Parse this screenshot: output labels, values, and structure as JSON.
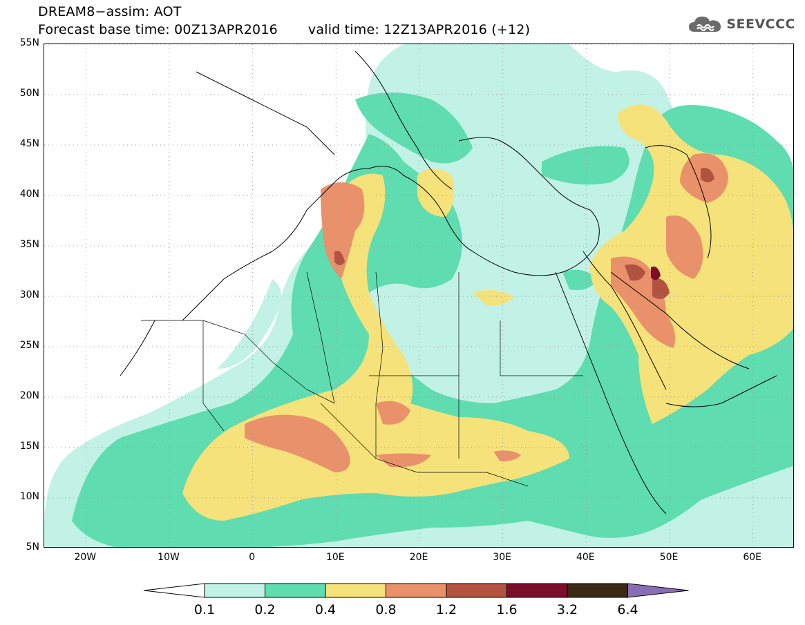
{
  "header": {
    "title": "DREAM8−assim: AOT",
    "base_time": "Forecast base time: 00Z13APR2016",
    "valid_time": "valid time: 12Z13APR2016 (+12)",
    "logo_text": "SEEVCCC",
    "logo_icon": "cloud-icon"
  },
  "map": {
    "lon_range": [
      -25,
      65
    ],
    "lat_range": [
      5,
      55
    ],
    "lat_labels": [
      "5N",
      "10N",
      "15N",
      "20N",
      "25N",
      "30N",
      "35N",
      "40N",
      "45N",
      "50N",
      "55N"
    ],
    "lat_values": [
      5,
      10,
      15,
      20,
      25,
      30,
      35,
      40,
      45,
      50,
      55
    ],
    "lon_labels": [
      "20W",
      "10W",
      "0",
      "10E",
      "20E",
      "30E",
      "40E",
      "50E",
      "60E"
    ],
    "lon_values": [
      -20,
      -10,
      0,
      10,
      20,
      30,
      40,
      50,
      60
    ],
    "gridlines": "dotted"
  },
  "colorbar": {
    "labels": [
      "0.1",
      "0.2",
      "0.4",
      "0.8",
      "1.2",
      "1.6",
      "3.2",
      "6.4"
    ],
    "colors": [
      "#ffffff",
      "#c2f2e6",
      "#5fdcb0",
      "#f6e27a",
      "#e9916a",
      "#b25342",
      "#7b0f2a",
      "#3c2816",
      "#8a6db4"
    ]
  }
}
